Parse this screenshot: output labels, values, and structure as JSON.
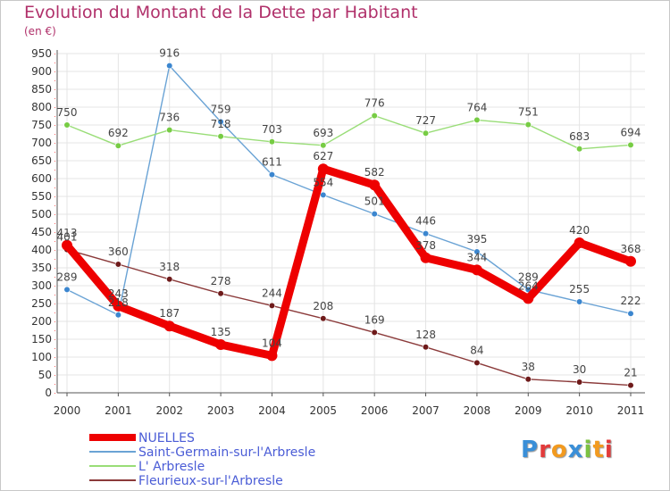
{
  "title": "Evolution du Montant de la Dette par Habitant",
  "unit": "(en €)",
  "logo": {
    "letters": [
      "P",
      "r",
      "o",
      "x",
      "i",
      "t",
      "i"
    ],
    "colors": [
      "#3a8fd8",
      "#e23b3b",
      "#f29a1f",
      "#3a8fd8",
      "#7cc242",
      "#f29a1f",
      "#e23b3b"
    ]
  },
  "chart_data": {
    "type": "line",
    "x": [
      "2000",
      "2001",
      "2002",
      "2003",
      "2004",
      "2005",
      "2006",
      "2007",
      "2008",
      "2009",
      "2010",
      "2011"
    ],
    "ylim": [
      0,
      950
    ],
    "yticks": [
      0,
      50,
      100,
      150,
      200,
      250,
      300,
      350,
      400,
      450,
      500,
      550,
      600,
      650,
      700,
      750,
      800,
      850,
      900,
      950
    ],
    "grid": true,
    "legend_position": "bottom-left",
    "series": [
      {
        "name": "NUELLES",
        "color": "#ee0000",
        "values": [
          413,
          243,
          187,
          135,
          104,
          627,
          582,
          378,
          344,
          264,
          420,
          368
        ],
        "labels": [
          "413",
          "243",
          "187",
          "135",
          "104",
          "627",
          "582",
          "378",
          "344",
          "264",
          "420",
          "368"
        ]
      },
      {
        "name": "Saint-Germain-sur-l'Arbresle",
        "color": "#6aa3d5",
        "marker_color": "#3b86cf",
        "values": [
          289,
          218,
          916,
          759,
          611,
          554,
          501,
          446,
          395,
          289,
          255,
          222
        ],
        "labels": [
          "289",
          "218",
          "916",
          "759",
          "611",
          "554",
          "501",
          "446",
          "395",
          "289",
          "255",
          "222"
        ]
      },
      {
        "name": "L' Arbresle",
        "color": "#99dd77",
        "marker_color": "#77cc44",
        "values": [
          750,
          692,
          736,
          718,
          703,
          693,
          776,
          727,
          764,
          751,
          683,
          694
        ],
        "labels": [
          "750",
          "692",
          "736",
          "718",
          "703",
          "693",
          "776",
          "727",
          "764",
          "751",
          "683",
          "694"
        ]
      },
      {
        "name": "Fleurieux-sur-l'Arbresle",
        "color": "#8b3a3a",
        "marker_color": "#6e1a1a",
        "values": [
          401,
          360,
          318,
          278,
          244,
          208,
          169,
          128,
          84,
          38,
          30,
          21
        ],
        "labels": [
          "401",
          "360",
          "318",
          "278",
          "244",
          "208",
          "169",
          "128",
          "84",
          "38",
          "30",
          "21"
        ]
      }
    ]
  }
}
